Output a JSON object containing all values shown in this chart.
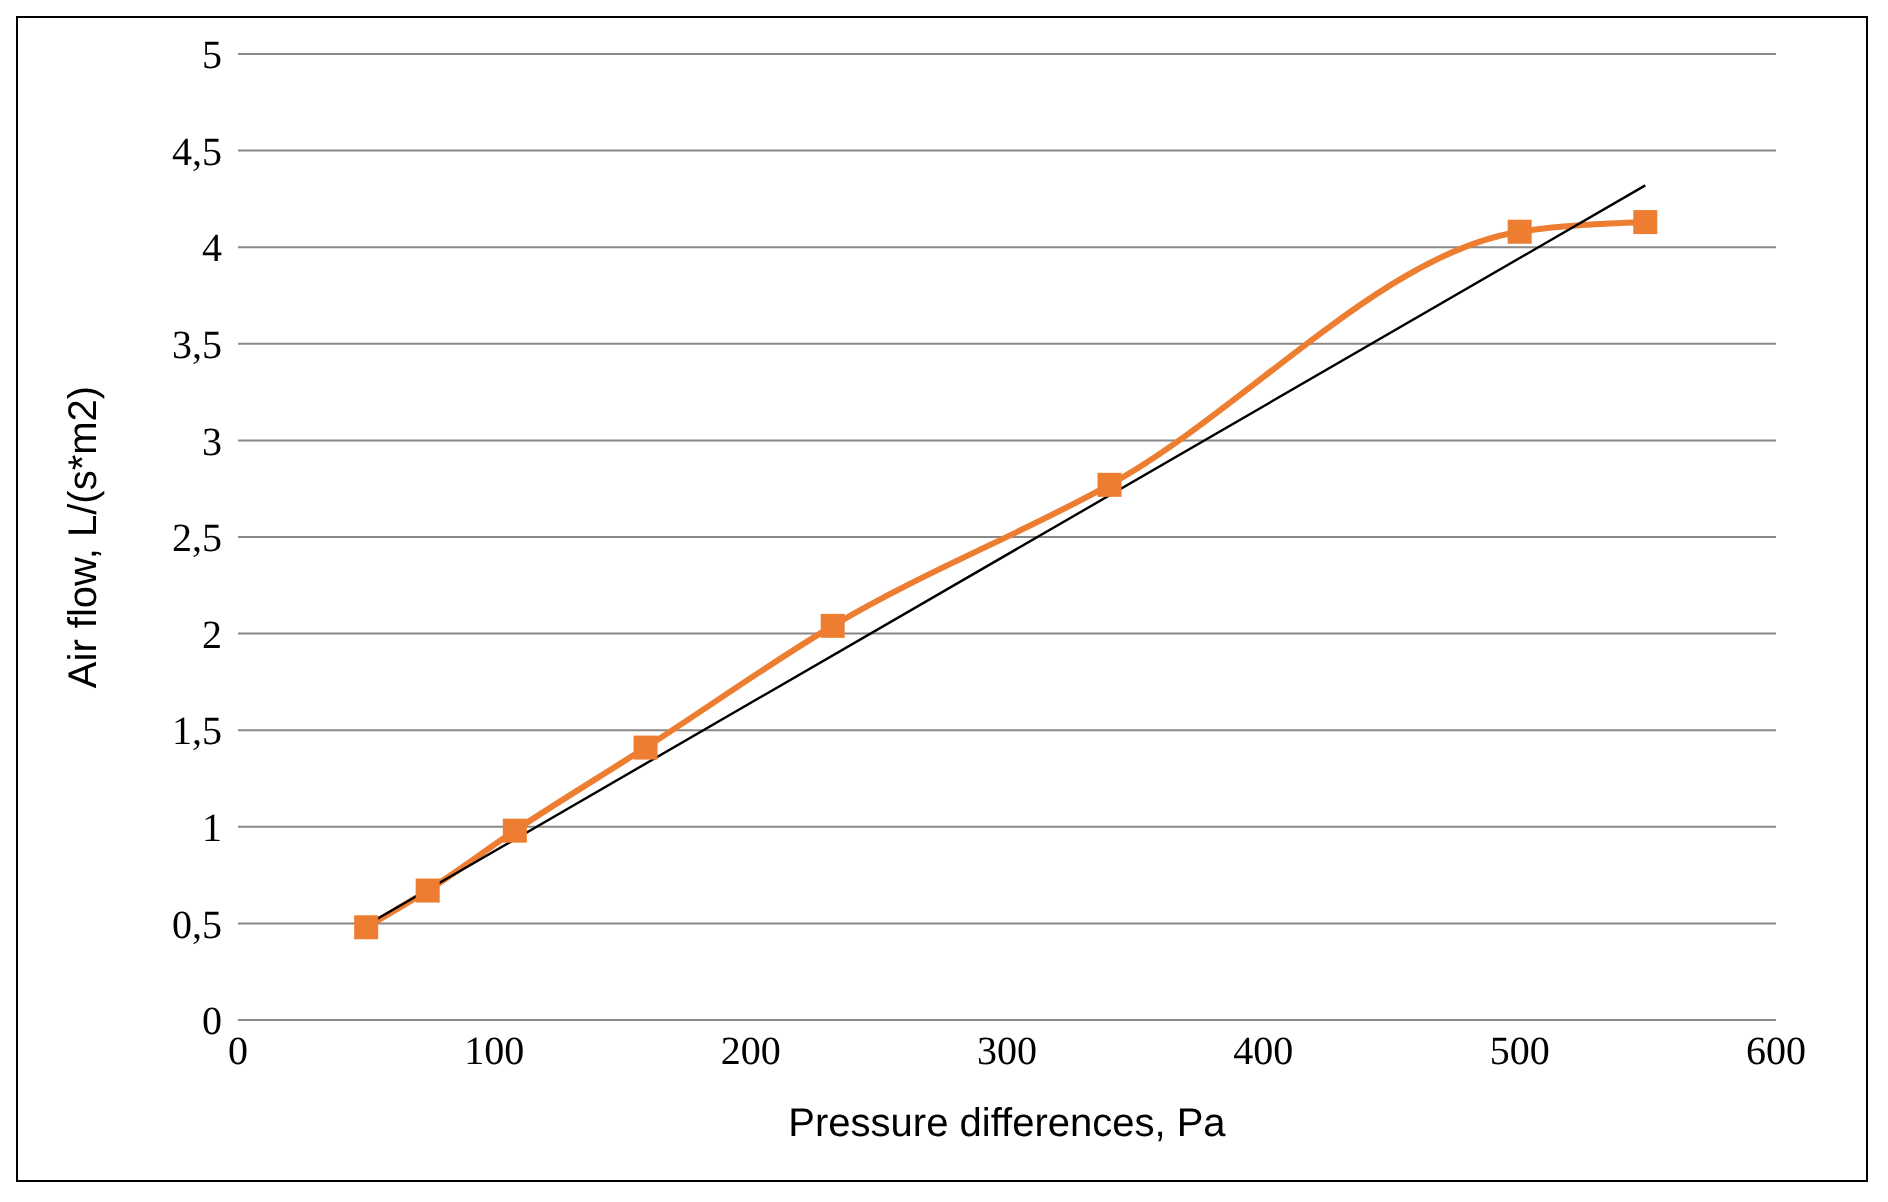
{
  "chart_data": {
    "type": "line",
    "xlabel": "Pressure differences, Pa",
    "ylabel": "Air flow,  L/(s*m2)",
    "xlim": [
      0,
      600
    ],
    "xticks": [
      0,
      100,
      200,
      300,
      400,
      500,
      600
    ],
    "ylim": [
      0,
      5
    ],
    "yticks": [
      0,
      {
        "value": 0.5,
        "label": "0,5"
      },
      1,
      {
        "value": 1.5,
        "label": "1,5"
      },
      2,
      {
        "value": 2.5,
        "label": "2,5"
      },
      3,
      {
        "value": 3.5,
        "label": "3,5"
      },
      4,
      {
        "value": 4.5,
        "label": "4,5"
      },
      5
    ],
    "grid": "y",
    "marker": "square",
    "line_style": "solid",
    "series": [
      {
        "color": "#ed7d31",
        "x": [
          50,
          74,
          108,
          159,
          232,
          340,
          500,
          549
        ],
        "values": [
          0.48,
          0.67,
          0.98,
          1.41,
          2.04,
          2.77,
          4.08,
          4.13
        ]
      },
      {
        "type": "line",
        "marker": "none",
        "color": "#000000",
        "x": [
          50,
          549
        ],
        "values": [
          0.49,
          4.32
        ]
      }
    ]
  }
}
